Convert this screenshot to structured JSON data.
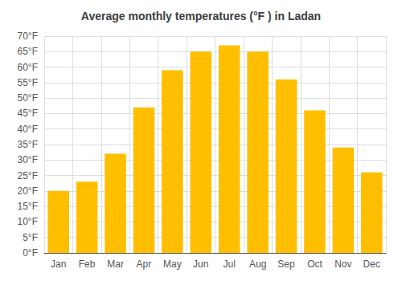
{
  "chart_data": {
    "type": "bar",
    "title": "Average monthly temperatures (°F ) in Ladan",
    "categories": [
      "Jan",
      "Feb",
      "Mar",
      "Apr",
      "May",
      "Jun",
      "Jul",
      "Aug",
      "Sep",
      "Oct",
      "Nov",
      "Dec"
    ],
    "values": [
      20,
      23,
      32,
      47,
      59,
      65,
      67,
      65,
      56,
      46,
      34,
      26
    ],
    "color": "#FFBF00",
    "ylim": [
      0,
      70
    ],
    "yticks": [
      {
        "value": 0,
        "label": "0°F"
      },
      {
        "value": 5,
        "label": "5°F"
      },
      {
        "value": 10,
        "label": "10°F"
      },
      {
        "value": 15,
        "label": "15°F"
      },
      {
        "value": 20,
        "label": "20°F"
      },
      {
        "value": 25,
        "label": "25°F"
      },
      {
        "value": 30,
        "label": "30°F"
      },
      {
        "value": 35,
        "label": "35°F"
      },
      {
        "value": 40,
        "label": "40°F"
      },
      {
        "value": 45,
        "label": "45°F"
      },
      {
        "value": 50,
        "label": "50°F"
      },
      {
        "value": 55,
        "label": "55°F"
      },
      {
        "value": 60,
        "label": "60°F"
      },
      {
        "value": 65,
        "label": "65°F"
      },
      {
        "value": 70,
        "label": "70°F"
      }
    ],
    "grid": true
  }
}
